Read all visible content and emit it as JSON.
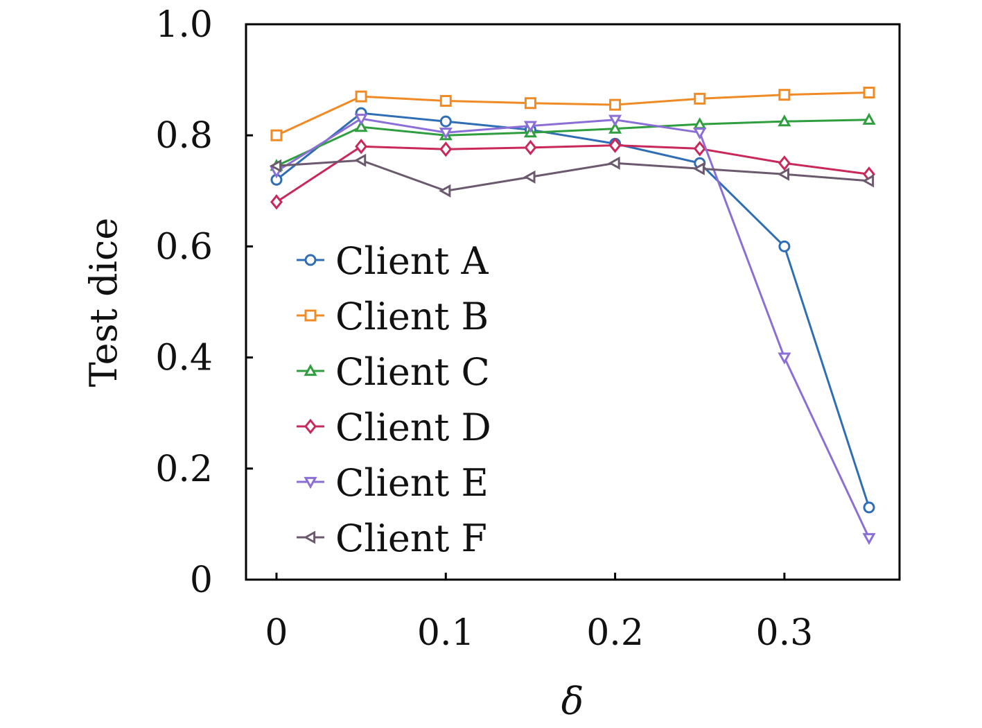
{
  "chart_data": {
    "type": "line",
    "xlabel": "δ",
    "ylabel": "Test dice",
    "xlim": [
      -0.018,
      0.368
    ],
    "ylim": [
      0,
      1.0
    ],
    "x_ticks": [
      {
        "value": 0,
        "label": "0"
      },
      {
        "value": 0.1,
        "label": "0.1"
      },
      {
        "value": 0.2,
        "label": "0.2"
      },
      {
        "value": 0.3,
        "label": "0.3"
      }
    ],
    "y_ticks": [
      {
        "value": 0,
        "label": "0"
      },
      {
        "value": 0.2,
        "label": "0.2"
      },
      {
        "value": 0.4,
        "label": "0.4"
      },
      {
        "value": 0.6,
        "label": "0.6"
      },
      {
        "value": 0.8,
        "label": "0.8"
      },
      {
        "value": 1.0,
        "label": "1.0"
      }
    ],
    "grid": false,
    "legend_position": "left",
    "x": [
      0,
      0.05,
      0.1,
      0.15,
      0.2,
      0.25,
      0.3,
      0.35
    ],
    "series": [
      {
        "name": "Client A",
        "color": "#2f6db5",
        "marker": "circle",
        "values": [
          0.72,
          0.84,
          0.825,
          0.81,
          0.785,
          0.75,
          0.6,
          0.13
        ]
      },
      {
        "name": "Client B",
        "color": "#f08a24",
        "marker": "square",
        "values": [
          0.8,
          0.87,
          0.862,
          0.858,
          0.855,
          0.866,
          0.873,
          0.877
        ]
      },
      {
        "name": "Client C",
        "color": "#2e9e3e",
        "marker": "triangle-up",
        "values": [
          0.745,
          0.815,
          0.8,
          0.805,
          0.812,
          0.82,
          0.825,
          0.828
        ]
      },
      {
        "name": "Client D",
        "color": "#c8285a",
        "marker": "diamond",
        "values": [
          0.68,
          0.78,
          0.775,
          0.778,
          0.782,
          0.776,
          0.75,
          0.73
        ]
      },
      {
        "name": "Client E",
        "color": "#8b6fd6",
        "marker": "triangle-down",
        "values": [
          0.735,
          0.83,
          0.805,
          0.817,
          0.828,
          0.805,
          0.4,
          0.075
        ]
      },
      {
        "name": "Client F",
        "color": "#6b5a6e",
        "marker": "triangle-left",
        "values": [
          0.745,
          0.755,
          0.7,
          0.725,
          0.75,
          0.74,
          0.73,
          0.718
        ]
      }
    ]
  }
}
